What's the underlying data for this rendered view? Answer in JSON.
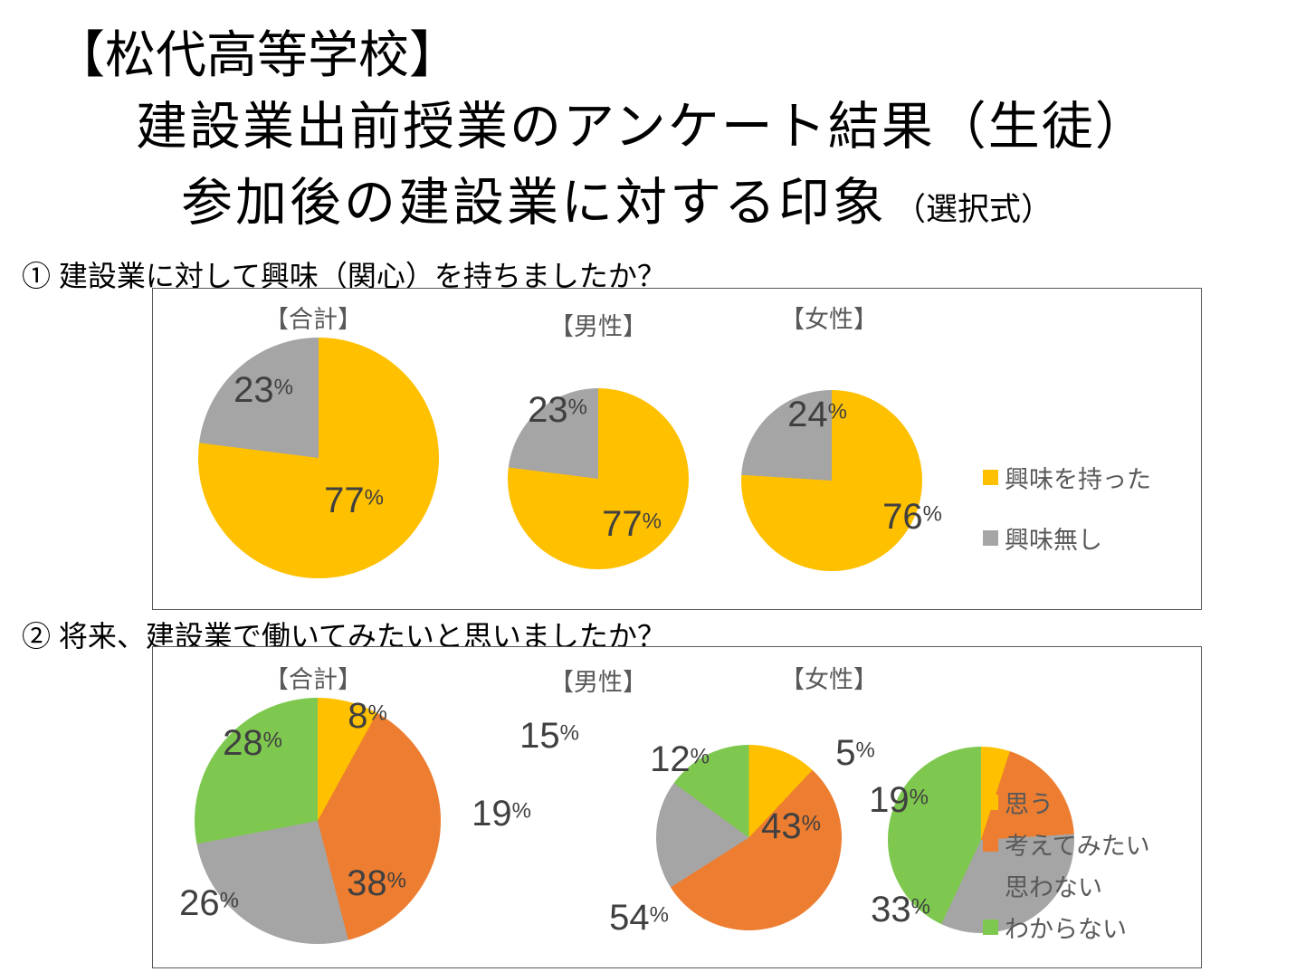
{
  "page": {
    "title_line1": "【松代高等学校】",
    "title_line2": "建設業出前授業のアンケート結果（生徒）",
    "title_line3": "参加後の建設業に対する印象",
    "title_line3_note": "（選択式）"
  },
  "colors": {
    "yellow": "#FFC000",
    "orange": "#ED7D31",
    "gray": "#A5A5A5",
    "green": "#7EC850",
    "label_text": "#404040",
    "panel_text": "#595959"
  },
  "q1": {
    "question": "① 建設業に対して興味（関心）を持ちましたか？",
    "legend": [
      {
        "label": "興味を持った",
        "color": "#FFC000"
      },
      {
        "label": "興味無し",
        "color": "#A5A5A5"
      }
    ]
  },
  "q2": {
    "question": "② 将来、建設業で働いてみたいと思いましたか？",
    "legend": [
      {
        "label": "思う",
        "color": "#FFC000"
      },
      {
        "label": "考えてみたい",
        "color": "#ED7D31"
      },
      {
        "label": "思わない",
        "color": "#A5A5A5"
      },
      {
        "label": "わからない",
        "color": "#7EC850"
      }
    ]
  },
  "chart_data": [
    {
      "type": "pie",
      "question": "① 建設業に対して興味（関心）を持ちましたか？",
      "title": "【合計】",
      "labels": [
        "興味を持った",
        "興味無し"
      ],
      "values": [
        77,
        23
      ],
      "display_labels": [
        "77%",
        "23%"
      ],
      "colors": [
        "#FFC000",
        "#A5A5A5"
      ],
      "legend_position": "right"
    },
    {
      "type": "pie",
      "question": "① 建設業に対して興味（関心）を持ちましたか？",
      "title": "【男性】",
      "labels": [
        "興味を持った",
        "興味無し"
      ],
      "values": [
        77,
        23
      ],
      "display_labels": [
        "77%",
        "23%"
      ],
      "colors": [
        "#FFC000",
        "#A5A5A5"
      ],
      "legend_position": "right"
    },
    {
      "type": "pie",
      "question": "① 建設業に対して興味（関心）を持ちましたか？",
      "title": "【女性】",
      "labels": [
        "興味を持った",
        "興味無し"
      ],
      "values": [
        76,
        24
      ],
      "display_labels": [
        "76%",
        "24%"
      ],
      "colors": [
        "#FFC000",
        "#A5A5A5"
      ],
      "legend_position": "right"
    },
    {
      "type": "pie",
      "question": "② 将来、建設業で働いてみたいと思いましたか？",
      "title": "【合計】",
      "labels": [
        "思う",
        "考えてみたい",
        "思わない",
        "わからない"
      ],
      "values": [
        8,
        38,
        26,
        28
      ],
      "display_labels": [
        "8%",
        "38%",
        "26%",
        "28%"
      ],
      "colors": [
        "#FFC000",
        "#ED7D31",
        "#A5A5A5",
        "#7EC850"
      ],
      "legend_position": "right"
    },
    {
      "type": "pie",
      "question": "② 将来、建設業で働いてみたいと思いましたか？",
      "title": "【男性】",
      "labels": [
        "思う",
        "考えてみたい",
        "思わない",
        "わからない"
      ],
      "values": [
        12,
        54,
        19,
        15
      ],
      "display_labels": [
        "12%",
        "54%",
        "19%",
        "15%"
      ],
      "colors": [
        "#FFC000",
        "#ED7D31",
        "#A5A5A5",
        "#7EC850"
      ],
      "legend_position": "right"
    },
    {
      "type": "pie",
      "question": "② 将来、建設業で働いてみたいと思いましたか？",
      "title": "【女性】",
      "labels": [
        "思う",
        "考えてみたい",
        "思わない",
        "わからない"
      ],
      "values": [
        5,
        19,
        33,
        43
      ],
      "display_labels": [
        "5%",
        "19%",
        "33%",
        "43%"
      ],
      "colors": [
        "#FFC000",
        "#ED7D31",
        "#A5A5A5",
        "#7EC850"
      ],
      "legend_position": "right"
    }
  ]
}
